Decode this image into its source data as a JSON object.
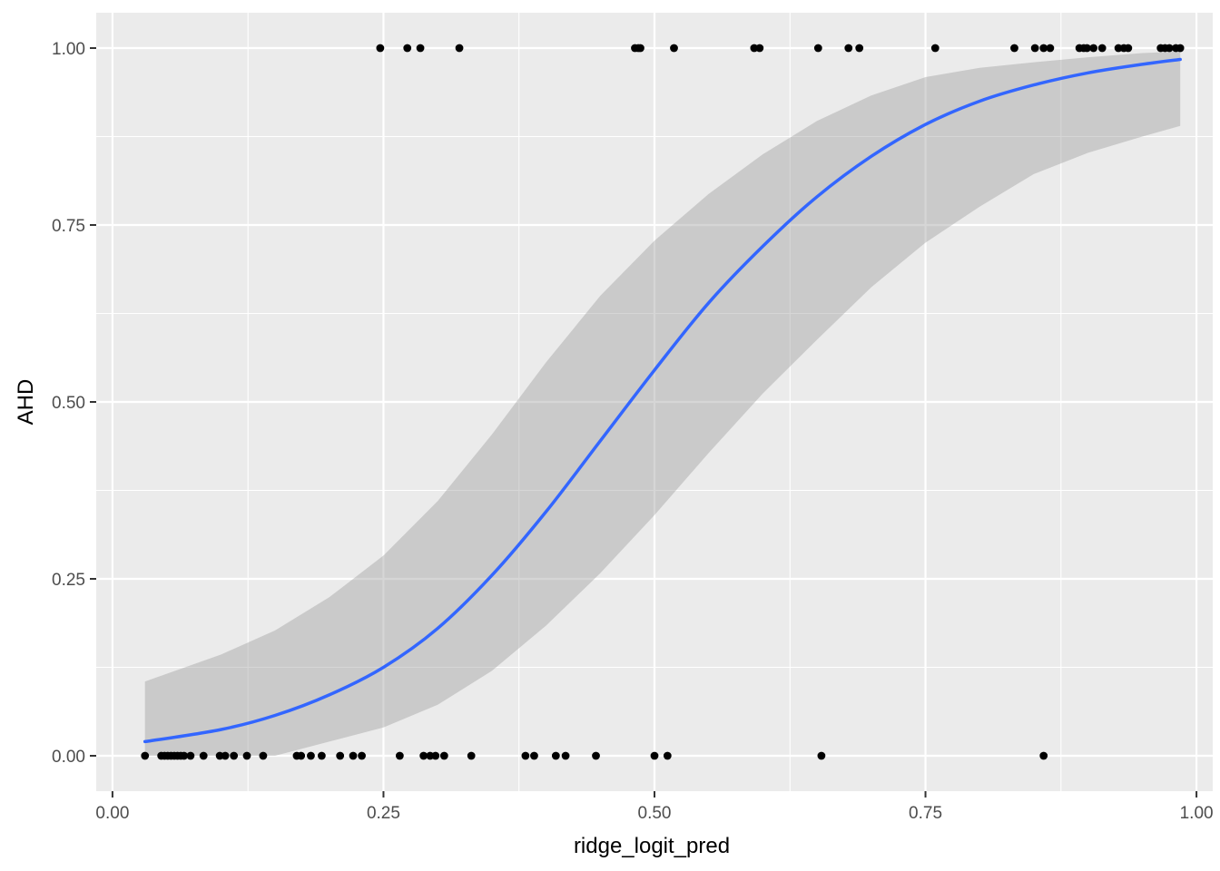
{
  "chart_data": {
    "type": "scatter",
    "xlabel": "ridge_logit_pred",
    "ylabel": "AHD",
    "xlim": [
      -0.015,
      1.015
    ],
    "ylim": [
      -0.05,
      1.05
    ],
    "x_ticks": [
      0.0,
      0.25,
      0.5,
      0.75,
      1.0
    ],
    "x_tick_labels": [
      "0.00",
      "0.25",
      "0.50",
      "0.75",
      "1.00"
    ],
    "y_ticks": [
      0.0,
      0.25,
      0.5,
      0.75,
      1.0
    ],
    "y_tick_labels": [
      "0.00",
      "0.25",
      "0.50",
      "0.75",
      "1.00"
    ],
    "grid": true,
    "colors": {
      "panel_background": "#ebebeb",
      "grid": "#ffffff",
      "points": "#000000",
      "smooth_line": "#3366ff",
      "confidence_band": "#999999"
    },
    "points": {
      "y1": [
        0.247,
        0.272,
        0.284,
        0.32,
        0.482,
        0.485,
        0.487,
        0.518,
        0.592,
        0.597,
        0.651,
        0.679,
        0.689,
        0.759,
        0.832,
        0.851,
        0.859,
        0.865,
        0.892,
        0.896,
        0.899,
        0.905,
        0.913,
        0.928,
        0.933,
        0.937,
        0.967,
        0.971,
        0.975,
        0.981,
        0.985
      ],
      "y0": [
        0.03,
        0.045,
        0.048,
        0.051,
        0.054,
        0.057,
        0.06,
        0.063,
        0.066,
        0.072,
        0.084,
        0.099,
        0.104,
        0.112,
        0.124,
        0.139,
        0.17,
        0.174,
        0.183,
        0.193,
        0.21,
        0.222,
        0.23,
        0.265,
        0.287,
        0.293,
        0.298,
        0.306,
        0.331,
        0.381,
        0.389,
        0.409,
        0.418,
        0.446,
        0.5,
        0.512,
        0.654,
        0.859
      ]
    },
    "smooth": {
      "method": "logistic",
      "x": [
        0.03,
        0.1,
        0.15,
        0.2,
        0.25,
        0.3,
        0.35,
        0.4,
        0.45,
        0.5,
        0.55,
        0.6,
        0.65,
        0.7,
        0.75,
        0.8,
        0.85,
        0.9,
        0.95,
        0.985
      ],
      "y": [
        0.02,
        0.037,
        0.057,
        0.086,
        0.125,
        0.18,
        0.255,
        0.345,
        0.445,
        0.545,
        0.64,
        0.72,
        0.79,
        0.847,
        0.892,
        0.925,
        0.948,
        0.965,
        0.977,
        0.984
      ],
      "lower": [
        0.0,
        0.0,
        0.0,
        0.02,
        0.04,
        0.072,
        0.12,
        0.184,
        0.258,
        0.34,
        0.428,
        0.512,
        0.588,
        0.662,
        0.725,
        0.776,
        0.822,
        0.852,
        0.875,
        0.89
      ],
      "upper": [
        0.105,
        0.143,
        0.177,
        0.224,
        0.283,
        0.36,
        0.454,
        0.556,
        0.65,
        0.728,
        0.794,
        0.85,
        0.897,
        0.933,
        0.959,
        0.972,
        0.98,
        0.987,
        0.993,
        0.995
      ]
    }
  }
}
